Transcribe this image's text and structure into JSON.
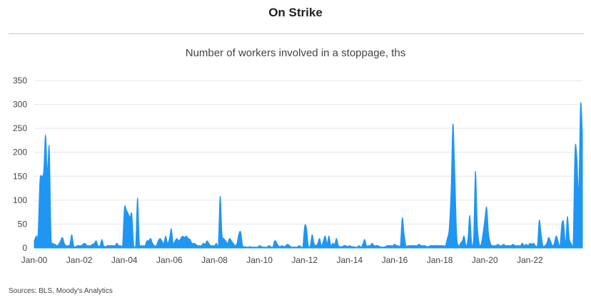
{
  "header": {
    "title": "On Strike",
    "subtitle": "Number of workers involved in a stoppage, ths"
  },
  "footer": {
    "source": "Sources: BLS, Moody's Analytics"
  },
  "chart_data": {
    "type": "area",
    "title": "On Strike",
    "subtitle": "Number of workers involved in a stoppage, ths",
    "xlabel": "",
    "ylabel": "",
    "ylim": [
      0,
      350
    ],
    "yticks": [
      0,
      50,
      100,
      150,
      200,
      250,
      300,
      350
    ],
    "xticks": [
      "Jan-00",
      "Jan-02",
      "Jan-04",
      "Jan-06",
      "Jan-08",
      "Jan-10",
      "Jan-12",
      "Jan-14",
      "Jan-16",
      "Jan-18",
      "Jan-20",
      "Jan-22"
    ],
    "grid": "horizontal",
    "color": "#1f96f3",
    "x_start": "Jan-00",
    "x_frequency": "monthly",
    "series": [
      {
        "values": [
          15,
          25,
          30,
          140,
          150,
          160,
          237,
          160,
          210,
          20,
          10,
          8,
          5,
          8,
          15,
          22,
          10,
          5,
          5,
          8,
          28,
          5,
          3,
          5,
          5,
          5,
          8,
          10,
          5,
          5,
          5,
          8,
          10,
          15,
          5,
          5,
          18,
          5,
          3,
          5,
          5,
          5,
          5,
          5,
          10,
          5,
          5,
          5,
          83,
          80,
          72,
          65,
          70,
          5,
          5,
          105,
          10,
          5,
          5,
          5,
          15,
          15,
          20,
          10,
          5,
          5,
          15,
          20,
          15,
          10,
          25,
          10,
          20,
          40,
          10,
          15,
          20,
          15,
          20,
          25,
          22,
          25,
          20,
          18,
          10,
          10,
          8,
          5,
          5,
          5,
          10,
          8,
          15,
          10,
          5,
          5,
          5,
          10,
          5,
          108,
          30,
          20,
          15,
          10,
          20,
          15,
          10,
          5,
          10,
          30,
          33,
          5,
          3,
          2,
          2,
          3,
          2,
          2,
          2,
          2,
          5,
          3,
          2,
          2,
          2,
          5,
          3,
          2,
          15,
          12,
          5,
          3,
          5,
          3,
          5,
          8,
          5,
          2,
          2,
          2,
          2,
          5,
          3,
          2,
          45,
          42,
          5,
          5,
          28,
          10,
          5,
          10,
          20,
          5,
          15,
          25,
          10,
          25,
          5,
          10,
          8,
          20,
          5,
          3,
          3,
          5,
          5,
          3,
          5,
          3,
          3,
          2,
          2,
          5,
          2,
          8,
          18,
          5,
          5,
          5,
          10,
          5,
          5,
          5,
          3,
          2,
          2,
          3,
          5,
          5,
          5,
          5,
          8,
          5,
          5,
          5,
          63,
          30,
          5,
          5,
          5,
          5,
          5,
          5,
          5,
          8,
          5,
          5,
          5,
          3,
          3,
          5,
          5,
          5,
          5,
          5,
          5,
          5,
          5,
          5,
          20,
          40,
          120,
          259,
          160,
          30,
          5,
          10,
          15,
          25,
          5,
          20,
          68,
          10,
          20,
          160,
          50,
          10,
          8,
          30,
          60,
          85,
          30,
          10,
          5,
          5,
          5,
          8,
          5,
          5,
          8,
          5,
          5,
          5,
          5,
          8,
          5,
          5,
          5,
          5,
          10,
          5,
          8,
          5,
          10,
          8,
          10,
          5,
          5,
          58,
          30,
          5,
          5,
          10,
          22,
          15,
          5,
          10,
          25,
          15,
          5,
          50,
          53,
          10,
          66,
          20,
          10,
          5,
          200,
          195,
          120,
          300,
          240
        ]
      }
    ]
  }
}
